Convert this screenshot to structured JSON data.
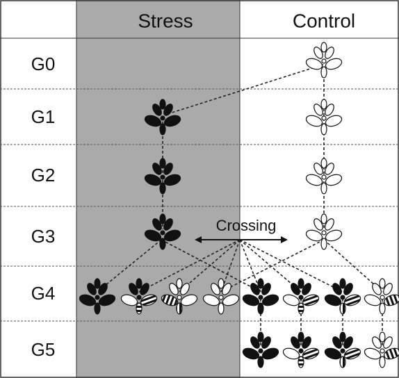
{
  "columns": [
    "Stress",
    "Control"
  ],
  "generations": [
    "G0",
    "G1",
    "G2",
    "G3",
    "G4",
    "G5"
  ],
  "crossing_label": "Crossing"
}
